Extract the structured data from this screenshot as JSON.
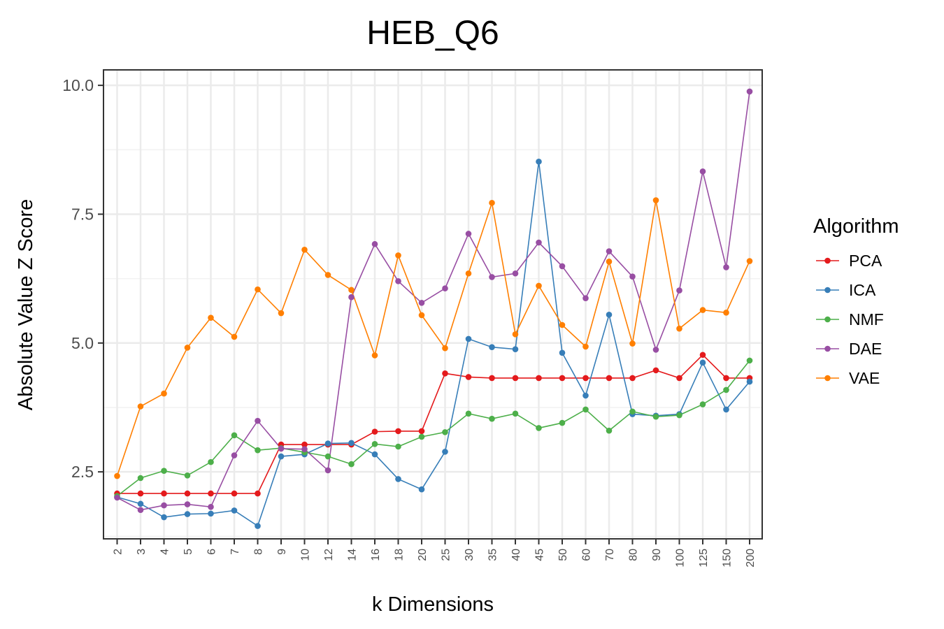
{
  "chart_data": {
    "type": "line",
    "title": "HEB_Q6",
    "xlabel": "k Dimensions",
    "ylabel": "Absolute Value Z Score",
    "categories": [
      "2",
      "3",
      "4",
      "5",
      "6",
      "7",
      "8",
      "9",
      "10",
      "12",
      "14",
      "16",
      "18",
      "20",
      "25",
      "30",
      "35",
      "40",
      "45",
      "50",
      "60",
      "70",
      "80",
      "90",
      "100",
      "125",
      "150",
      "200"
    ],
    "y_ticks": [
      2.5,
      5.0,
      7.5,
      10.0
    ],
    "y_tick_labels": [
      "2.5",
      "5.0",
      "7.5",
      "10.0"
    ],
    "ylim": [
      1.2,
      10.3
    ],
    "grid": true,
    "legend_title": "Algorithm",
    "legend_position": "right",
    "series": [
      {
        "name": "PCA",
        "color": "#e41a1c",
        "values": [
          2.08,
          2.08,
          2.08,
          2.08,
          2.08,
          2.08,
          2.08,
          3.03,
          3.03,
          3.03,
          3.03,
          3.28,
          3.29,
          3.29,
          4.41,
          4.34,
          4.32,
          4.32,
          4.32,
          4.32,
          4.32,
          4.32,
          4.32,
          4.47,
          4.32,
          4.77,
          4.32,
          4.32
        ]
      },
      {
        "name": "ICA",
        "color": "#377eb8",
        "values": [
          2.01,
          1.88,
          1.62,
          1.68,
          1.69,
          1.75,
          1.45,
          2.8,
          2.84,
          3.05,
          3.06,
          2.84,
          2.36,
          2.16,
          2.89,
          5.08,
          4.92,
          4.88,
          8.52,
          4.81,
          3.98,
          5.55,
          3.62,
          3.59,
          3.62,
          4.62,
          3.71,
          4.25
        ]
      },
      {
        "name": "NMF",
        "color": "#4daf4a",
        "values": [
          2.03,
          2.38,
          2.52,
          2.43,
          2.69,
          3.21,
          2.92,
          2.96,
          2.88,
          2.8,
          2.65,
          3.04,
          2.99,
          3.18,
          3.27,
          3.63,
          3.53,
          3.63,
          3.35,
          3.45,
          3.71,
          3.3,
          3.67,
          3.57,
          3.6,
          3.81,
          4.09,
          4.66
        ]
      },
      {
        "name": "DAE",
        "color": "#984ea3",
        "values": [
          2.0,
          1.76,
          1.85,
          1.87,
          1.82,
          2.82,
          3.49,
          2.95,
          2.94,
          2.53,
          5.89,
          6.92,
          6.2,
          5.78,
          6.06,
          7.12,
          6.28,
          6.35,
          6.95,
          6.49,
          5.87,
          6.78,
          6.29,
          4.87,
          6.02,
          8.33,
          6.47,
          9.88
        ]
      },
      {
        "name": "VAE",
        "color": "#ff7f00",
        "values": [
          2.42,
          3.77,
          4.02,
          4.91,
          5.49,
          5.12,
          6.04,
          5.58,
          6.81,
          6.32,
          6.03,
          4.76,
          6.7,
          5.54,
          4.9,
          6.35,
          7.72,
          5.17,
          6.11,
          5.35,
          4.93,
          6.58,
          4.99,
          7.77,
          5.28,
          5.64,
          5.59,
          6.59
        ]
      }
    ]
  }
}
